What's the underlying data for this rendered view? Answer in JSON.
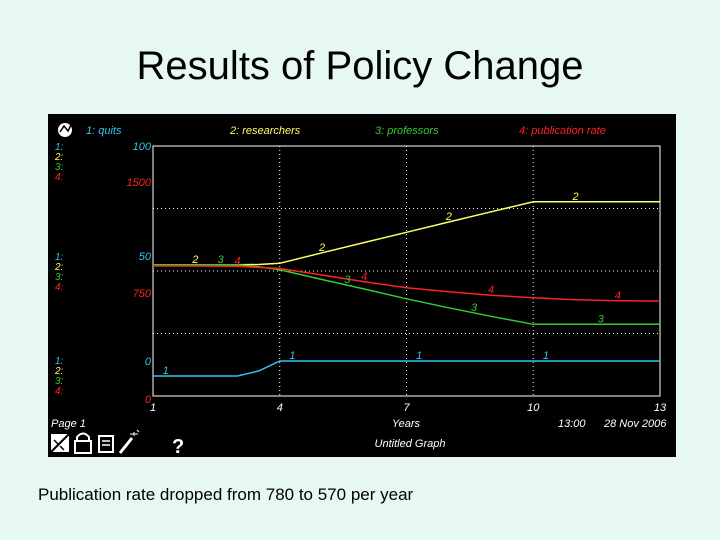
{
  "slide": {
    "title": "Results of Policy Change",
    "caption": "Publication rate dropped from 780 to 570 per year"
  },
  "graph": {
    "page_label": "Page 1",
    "graph_name": "Untitled Graph",
    "time_label": "13:00",
    "date_label": "28 Nov 2006",
    "help_glyph": "?",
    "icons": [
      "graph-toggle-icon",
      "lock-icon",
      "page-icon",
      "magic-wand-icon",
      "help-icon"
    ],
    "colors": {
      "background": "#000000",
      "quits": "#33c3e8",
      "researchers": "#ffff66",
      "professors": "#33cc33",
      "publication_rate": "#ff2222",
      "text": "#ffffff"
    }
  },
  "chart_data": {
    "type": "line",
    "xlabel": "Years",
    "x_ticks": [
      "1",
      "4",
      "7",
      "10",
      "13"
    ],
    "xlim": [
      1,
      13
    ],
    "series": [
      {
        "name": "1: quits",
        "scale": {
          "top": "100",
          "mid": "50",
          "bottom": "0"
        },
        "ylim": [
          0,
          100
        ],
        "x": [
          1,
          1.5,
          2.0,
          2.5,
          3.0,
          3.5,
          4.0,
          4.5,
          5,
          6,
          7,
          8,
          9,
          10,
          11,
          12,
          13
        ],
        "values": [
          8,
          8,
          8,
          8,
          8,
          10,
          14,
          14,
          14,
          14,
          14,
          14,
          14,
          14,
          14,
          14,
          14
        ]
      },
      {
        "name": "2: researchers",
        "scale": {
          "top": "",
          "mid": "",
          "bottom": ""
        },
        "ylim": [
          0,
          100
        ],
        "x": [
          1,
          2,
          3,
          3.5,
          4,
          5,
          6,
          7,
          8,
          9,
          10,
          11,
          12,
          13
        ],
        "values": [
          52.5,
          52.5,
          52.5,
          52.6,
          53.1,
          57.3,
          61.4,
          65.5,
          69.6,
          73.7,
          77.7,
          77.7,
          77.7,
          77.7
        ]
      },
      {
        "name": "3: professors",
        "scale": {
          "top": "",
          "mid": "",
          "bottom": ""
        },
        "ylim": [
          0,
          100
        ],
        "x": [
          1,
          2,
          3,
          3.5,
          4,
          5,
          6,
          7,
          8,
          9,
          10,
          11,
          12,
          13
        ],
        "values": [
          52.5,
          52.5,
          52.5,
          51.7,
          50.5,
          46.6,
          42.8,
          38.9,
          35.3,
          31.9,
          28.7,
          28.7,
          28.7,
          28.7
        ]
      },
      {
        "name": "4: publication rate",
        "scale": {
          "top": "1500",
          "mid": "750",
          "bottom": "0"
        },
        "ylim": [
          0,
          1500
        ],
        "x": [
          1,
          2,
          3,
          4,
          5,
          6,
          7,
          8,
          9,
          10,
          11,
          12,
          13
        ],
        "values": [
          780,
          780,
          778,
          765,
          726,
          685,
          650,
          625,
          605,
          590,
          578,
          571,
          570
        ]
      }
    ],
    "label_marks": [
      {
        "series": 0,
        "text": "1",
        "x": [
          1.3,
          4.3,
          7.3,
          10.3
        ]
      },
      {
        "series": 1,
        "text": "2",
        "x": [
          2.0,
          5.0,
          8.0,
          11.0
        ]
      },
      {
        "series": 2,
        "text": "3",
        "x": [
          2.6,
          5.6,
          8.6,
          11.6
        ]
      },
      {
        "series": 3,
        "text": "4",
        "x": [
          3.0,
          6.0,
          9.0,
          12.0
        ]
      }
    ],
    "grid": "dotted",
    "legend": "top"
  }
}
